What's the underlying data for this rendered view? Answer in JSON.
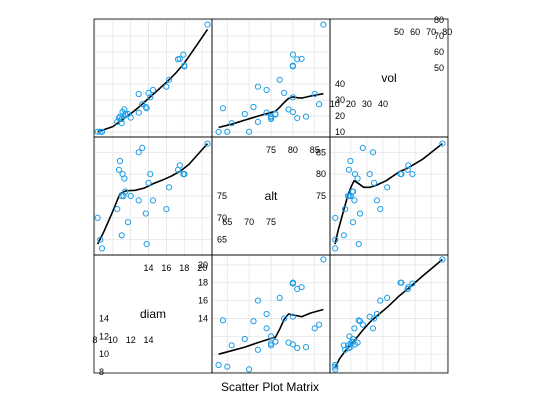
{
  "chart_data": {
    "type": "scatter",
    "xlabel": "Scatter Plot Matrix",
    "variables": [
      "diam",
      "alt",
      "vol"
    ],
    "point_color": "#1f9fe8",
    "grid": true,
    "grid_color": "#e6e6e6",
    "smoother": true,
    "ranges": {
      "diam": [
        7.9,
        21.1
      ],
      "alt": [
        61.5,
        88.5
      ],
      "vol": [
        7.0,
        80.5
      ]
    },
    "ticks": {
      "diam": {
        "bottom": [
          8,
          10,
          12,
          14
        ],
        "top": [
          14,
          16,
          18,
          20
        ]
      },
      "alt": {
        "bottom": [
          65,
          70,
          75
        ],
        "top": [
          75,
          80,
          85
        ]
      },
      "vol": {
        "bottom": [
          10,
          20,
          30,
          40
        ],
        "top": [
          50,
          60,
          70,
          80
        ]
      }
    },
    "data": {
      "diam": [
        8.3,
        8.6,
        8.8,
        10.5,
        10.7,
        10.8,
        11.0,
        11.0,
        11.1,
        11.2,
        11.3,
        11.4,
        11.4,
        11.7,
        12.0,
        12.9,
        12.9,
        13.3,
        13.7,
        13.8,
        14.0,
        14.2,
        14.5,
        16.0,
        16.3,
        17.3,
        17.5,
        17.9,
        18.0,
        18.0,
        20.6
      ],
      "alt": [
        70,
        65,
        63,
        72,
        81,
        83,
        66,
        75,
        80,
        75,
        79,
        76,
        76,
        69,
        75,
        74,
        85,
        86,
        71,
        64,
        78,
        80,
        74,
        72,
        77,
        81,
        82,
        80,
        80,
        80,
        87
      ],
      "vol": [
        10.3,
        10.3,
        10.2,
        16.4,
        18.8,
        19.7,
        15.6,
        18.2,
        22.6,
        19.9,
        24.2,
        21.0,
        21.4,
        21.3,
        19.1,
        22.2,
        33.8,
        27.4,
        25.7,
        24.9,
        34.5,
        31.7,
        36.3,
        38.3,
        42.6,
        55.4,
        55.7,
        58.3,
        51.5,
        51.0,
        77.0
      ]
    },
    "smooth": {
      "vol_vs_diam": [
        [
          8.3,
          10.2
        ],
        [
          10,
          13.5
        ],
        [
          11,
          17.5
        ],
        [
          12,
          21.5
        ],
        [
          13,
          26
        ],
        [
          14,
          31
        ],
        [
          15,
          36
        ],
        [
          16,
          41
        ],
        [
          17,
          46.5
        ],
        [
          18,
          53
        ],
        [
          19,
          61
        ],
        [
          20.6,
          74
        ]
      ],
      "alt_vs_diam": [
        [
          8.3,
          64
        ],
        [
          9,
          66.8
        ],
        [
          10,
          71.5
        ],
        [
          10.8,
          75.5
        ],
        [
          11.5,
          76.2
        ],
        [
          12.5,
          76.3
        ],
        [
          13.5,
          76.8
        ],
        [
          14.5,
          77.8
        ],
        [
          15.5,
          78.6
        ],
        [
          16.5,
          79.5
        ],
        [
          17.5,
          80.6
        ],
        [
          18.5,
          82.2
        ],
        [
          20.6,
          87
        ]
      ],
      "diam_vs_alt": [
        [
          63,
          10.0
        ],
        [
          66,
          10.4
        ],
        [
          69,
          10.8
        ],
        [
          72,
          11.3
        ],
        [
          74,
          11.6
        ],
        [
          76,
          11.9
        ],
        [
          77,
          12.8
        ],
        [
          78,
          13.9
        ],
        [
          79,
          14.5
        ],
        [
          80,
          14.4
        ],
        [
          82,
          14.2
        ],
        [
          84,
          14.6
        ],
        [
          87,
          15.0
        ]
      ],
      "vol_vs_alt": [
        [
          63,
          13
        ],
        [
          66,
          15
        ],
        [
          69,
          17.5
        ],
        [
          72,
          20
        ],
        [
          74,
          21.5
        ],
        [
          76,
          23
        ],
        [
          77,
          25.5
        ],
        [
          78,
          28.5
        ],
        [
          79,
          31
        ],
        [
          80,
          32
        ],
        [
          81,
          31.5
        ],
        [
          82,
          31.2
        ],
        [
          84,
          32.5
        ],
        [
          87,
          34
        ]
      ],
      "diam_vs_vol": [
        [
          10.2,
          8.5
        ],
        [
          13,
          9.5
        ],
        [
          17,
          10.5
        ],
        [
          20,
          11.1
        ],
        [
          23,
          11.7
        ],
        [
          27,
          12.6
        ],
        [
          32,
          13.6
        ],
        [
          37,
          14.4
        ],
        [
          43,
          15.3
        ],
        [
          50,
          16.5
        ],
        [
          56,
          17.4
        ],
        [
          65,
          18.8
        ],
        [
          77,
          20.6
        ]
      ],
      "alt_vs_vol": [
        [
          10.2,
          64
        ],
        [
          12,
          67
        ],
        [
          15,
          71
        ],
        [
          18,
          75
        ],
        [
          20,
          77
        ],
        [
          22,
          78.5
        ],
        [
          25,
          77.8
        ],
        [
          28,
          77
        ],
        [
          32,
          77
        ],
        [
          36,
          77.5
        ],
        [
          42,
          78.5
        ],
        [
          50,
          80.5
        ],
        [
          56,
          81.5
        ],
        [
          65,
          83.5
        ],
        [
          77,
          87
        ]
      ]
    }
  }
}
